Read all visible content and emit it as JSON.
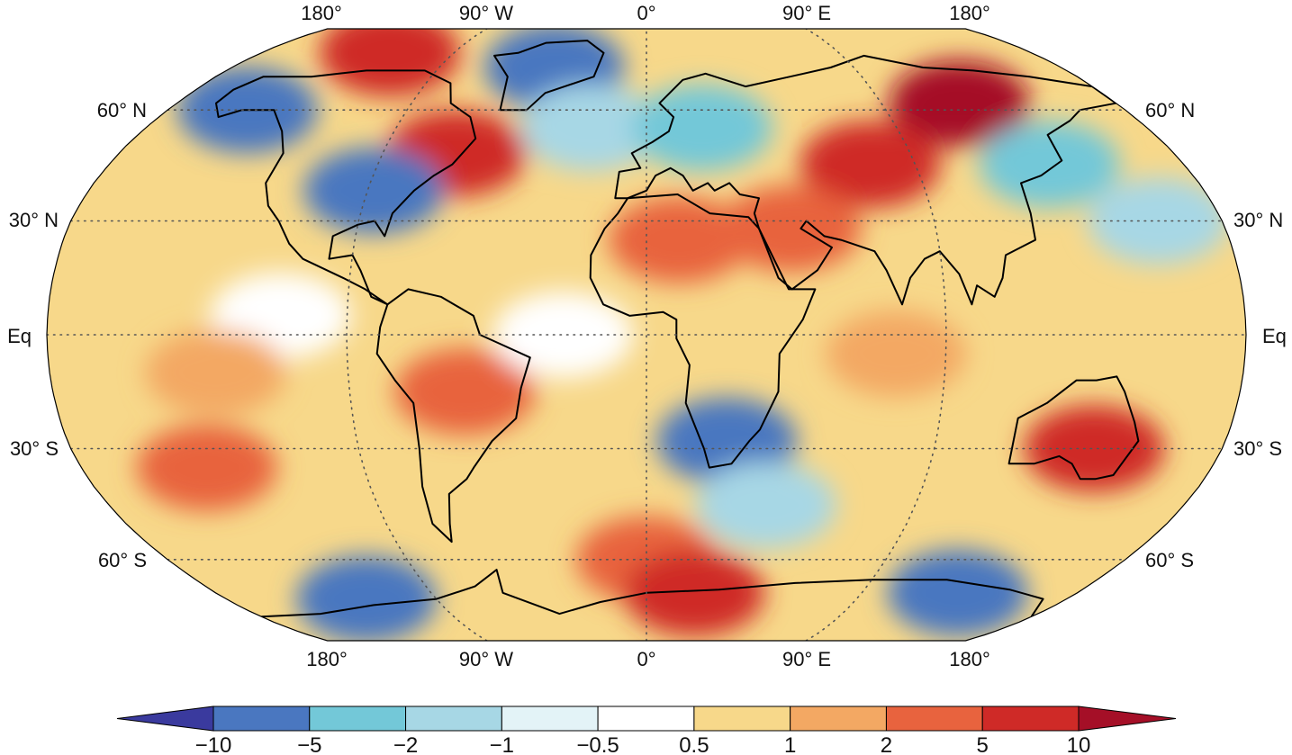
{
  "map": {
    "projection": "Robinson",
    "lon_labels": [
      "180°",
      "90° W",
      "0°",
      "90° E",
      "180°"
    ],
    "lat_labels_left": [
      "60° N",
      "30° N",
      "Eq",
      "30° S",
      "60° S"
    ],
    "lat_labels_right": [
      "60° N",
      "30° N",
      "Eq",
      "30° S",
      "60° S"
    ],
    "graticule": "dotted",
    "graticule_color": "#555555",
    "outline_color": "#000000"
  },
  "colorbar": {
    "tick_labels": [
      "−10",
      "−5",
      "−2",
      "−1",
      "−0.5",
      "0.5",
      "1",
      "2",
      "5",
      "10"
    ],
    "bins": [
      {
        "color": "#3a3a9e"
      },
      {
        "color": "#4a77c0"
      },
      {
        "color": "#73c8d8"
      },
      {
        "color": "#a7d7e5"
      },
      {
        "color": "#e3f3f7"
      },
      {
        "color": "#ffffff"
      },
      {
        "color": "#f7d88a"
      },
      {
        "color": "#f3a863"
      },
      {
        "color": "#e8633e"
      },
      {
        "color": "#cf2a27"
      },
      {
        "color": "#a50f27"
      }
    ]
  },
  "field": {
    "ocean_base_color": "#f7d88a",
    "regions": [
      {
        "name": "siberia-anomaly",
        "lon": 120,
        "lat": 62,
        "bin": 10
      },
      {
        "name": "central-asia-anomaly",
        "lon": 75,
        "lat": 45,
        "bin": 9
      },
      {
        "name": "middle-east-anomaly",
        "lon": 45,
        "lat": 28,
        "bin": 8
      },
      {
        "name": "north-africa-anomaly",
        "lon": 10,
        "lat": 25,
        "bin": 8
      },
      {
        "name": "canada-east-anomaly",
        "lon": -65,
        "lat": 48,
        "bin": 9
      },
      {
        "name": "usa-east-cold",
        "lon": -88,
        "lat": 38,
        "bin": 1
      },
      {
        "name": "alaska-cold",
        "lon": -150,
        "lat": 60,
        "bin": 1
      },
      {
        "name": "greenland-cold",
        "lon": -40,
        "lat": 73,
        "bin": 1
      },
      {
        "name": "arctic-warm",
        "lon": -120,
        "lat": 78,
        "bin": 9
      },
      {
        "name": "north-atlantic-cool",
        "lon": -20,
        "lat": 55,
        "bin": 3
      },
      {
        "name": "europe-cool",
        "lon": 20,
        "lat": 55,
        "bin": 2
      },
      {
        "name": "east-asia-cool",
        "lon": 135,
        "lat": 45,
        "bin": 2
      },
      {
        "name": "west-pacific-cool",
        "lon": 160,
        "lat": 30,
        "bin": 3
      },
      {
        "name": "south-america-warm",
        "lon": -55,
        "lat": -15,
        "bin": 8
      },
      {
        "name": "south-africa-cold",
        "lon": 25,
        "lat": -28,
        "bin": 1
      },
      {
        "name": "south-indian-cool",
        "lon": 40,
        "lat": -45,
        "bin": 3
      },
      {
        "name": "australia-warm",
        "lon": 140,
        "lat": -30,
        "bin": 9
      },
      {
        "name": "south-pacific-warm",
        "lon": -140,
        "lat": -35,
        "bin": 8
      },
      {
        "name": "southern-ocean-warm",
        "lon": 0,
        "lat": -60,
        "bin": 8
      },
      {
        "name": "antarctica-east-cold",
        "lon": 130,
        "lat": -70,
        "bin": 1
      },
      {
        "name": "antarctica-west-cold",
        "lon": -120,
        "lat": -72,
        "bin": 1
      },
      {
        "name": "weddell-warm",
        "lon": 20,
        "lat": -70,
        "bin": 9
      },
      {
        "name": "tropical-atlantic-neutral",
        "lon": -25,
        "lat": 0,
        "bin": 5
      },
      {
        "name": "tropical-pacific-neutral",
        "lon": -110,
        "lat": 5,
        "bin": 5
      },
      {
        "name": "eastern-pacific-warm",
        "lon": -130,
        "lat": -10,
        "bin": 7
      },
      {
        "name": "indian-ocean-warm",
        "lon": 75,
        "lat": -5,
        "bin": 7
      }
    ]
  }
}
